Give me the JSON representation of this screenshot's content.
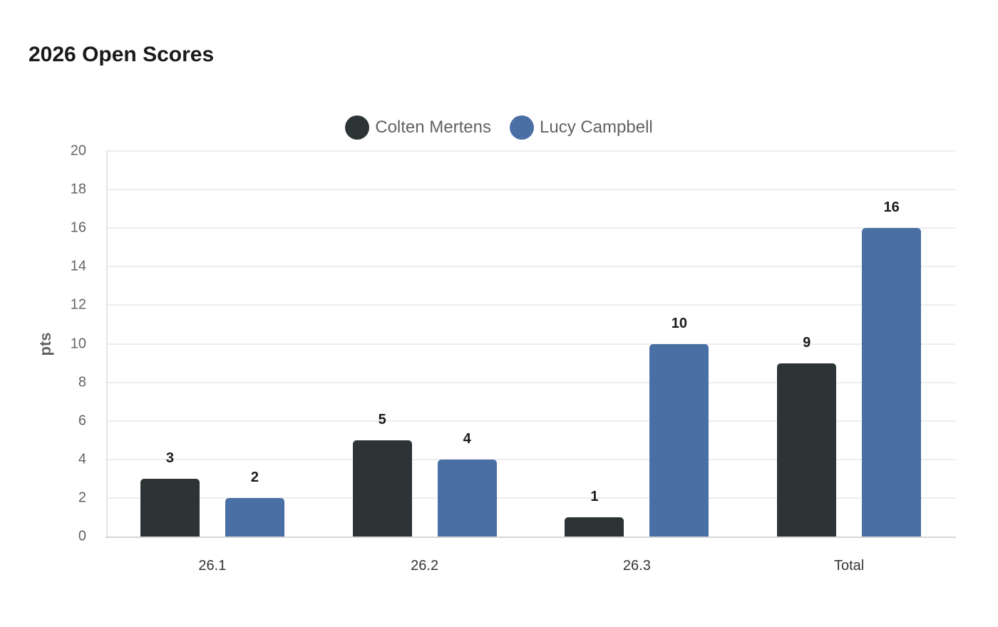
{
  "chart_data": {
    "type": "bar",
    "title": "2026 Open Scores",
    "categories": [
      "26.1",
      "26.2",
      "26.3",
      "Total"
    ],
    "series": [
      {
        "name": "Colten Mertens",
        "color": "#2d3436",
        "values": [
          3,
          5,
          1,
          9
        ]
      },
      {
        "name": "Lucy Campbell",
        "color": "#4a6fa5",
        "values": [
          2,
          4,
          10,
          16
        ]
      }
    ],
    "xlabel": "",
    "ylabel": "pts",
    "ylim": [
      0,
      20
    ],
    "yticks": [
      0,
      2,
      4,
      6,
      8,
      10,
      12,
      14,
      16,
      18,
      20
    ],
    "grid": true,
    "legend_position": "top",
    "data_labels": true
  },
  "header": {
    "title": "2026 Open Scores"
  },
  "legend": {
    "items": [
      {
        "label": "Colten Mertens",
        "color": "#2d3436"
      },
      {
        "label": "Lucy Campbell",
        "color": "#4a6fa5"
      }
    ]
  },
  "axes": {
    "ylabel": "pts",
    "yticks": [
      "0",
      "2",
      "4",
      "6",
      "8",
      "10",
      "12",
      "14",
      "16",
      "18",
      "20"
    ],
    "xticks": [
      "26.1",
      "26.2",
      "26.3",
      "Total"
    ]
  }
}
